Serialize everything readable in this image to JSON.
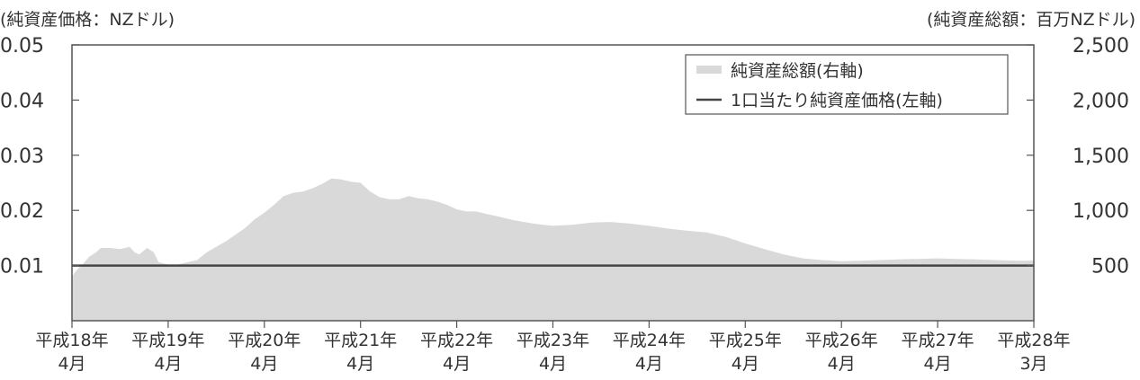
{
  "chart_data": {
    "type": "area",
    "left_axis_label": "(純資産価格：NZドル)",
    "right_axis_label": "(純資産総額：百万NZドル)",
    "left_ylim": [
      0,
      0.05
    ],
    "right_ylim": [
      0,
      2500
    ],
    "left_ticks": [
      "0.01",
      "0.02",
      "0.03",
      "0.04",
      "0.05"
    ],
    "left_tick_values": [
      0.01,
      0.02,
      0.03,
      0.04,
      0.05
    ],
    "right_ticks": [
      "500",
      "1,000",
      "1,500",
      "2,000",
      "2,500"
    ],
    "right_tick_values": [
      500,
      1000,
      1500,
      2000,
      2500
    ],
    "x_ticks": [
      {
        "top": "平成18年",
        "bottom": "4月"
      },
      {
        "top": "平成19年",
        "bottom": "4月"
      },
      {
        "top": "平成20年",
        "bottom": "4月"
      },
      {
        "top": "平成21年",
        "bottom": "4月"
      },
      {
        "top": "平成22年",
        "bottom": "4月"
      },
      {
        "top": "平成23年",
        "bottom": "4月"
      },
      {
        "top": "平成24年",
        "bottom": "4月"
      },
      {
        "top": "平成25年",
        "bottom": "4月"
      },
      {
        "top": "平成26年",
        "bottom": "4月"
      },
      {
        "top": "平成27年",
        "bottom": "4月"
      },
      {
        "top": "平成28年",
        "bottom": "3月"
      }
    ],
    "x_range": [
      0,
      10
    ],
    "legend": [
      {
        "label": "純資産総額(右軸)",
        "kind": "area",
        "color": "#d9d9d9"
      },
      {
        "label": "1口当たり純資産価格(左軸)",
        "kind": "line",
        "color": "#444444"
      }
    ],
    "legend_position": "top-right",
    "grid": false,
    "series": [
      {
        "name": "純資産総額(右軸)",
        "axis": "right",
        "type": "area",
        "color": "#d9d9d9",
        "x": [
          0,
          0.05,
          0.12,
          0.18,
          0.25,
          0.3,
          0.4,
          0.5,
          0.6,
          0.65,
          0.7,
          0.78,
          0.85,
          0.9,
          0.95,
          1.0,
          1.05,
          1.15,
          1.3,
          1.4,
          1.5,
          1.6,
          1.7,
          1.8,
          1.9,
          2.0,
          2.1,
          2.2,
          2.3,
          2.4,
          2.5,
          2.6,
          2.7,
          2.8,
          2.9,
          3.0,
          3.1,
          3.2,
          3.3,
          3.4,
          3.5,
          3.6,
          3.7,
          3.8,
          3.9,
          4.0,
          4.1,
          4.2,
          4.3,
          4.4,
          4.5,
          4.6,
          4.7,
          4.8,
          4.9,
          5.0,
          5.2,
          5.4,
          5.6,
          5.8,
          6.0,
          6.2,
          6.4,
          6.6,
          6.8,
          7.0,
          7.2,
          7.4,
          7.6,
          7.8,
          8.0,
          8.2,
          8.4,
          8.6,
          8.8,
          9.0,
          9.2,
          9.4,
          9.6,
          9.8,
          10.0
        ],
        "values": [
          400,
          460,
          520,
          580,
          620,
          660,
          660,
          650,
          670,
          620,
          600,
          660,
          620,
          530,
          520,
          510,
          500,
          520,
          550,
          620,
          670,
          720,
          780,
          840,
          920,
          980,
          1050,
          1130,
          1160,
          1170,
          1200,
          1240,
          1290,
          1280,
          1260,
          1250,
          1170,
          1120,
          1100,
          1100,
          1130,
          1110,
          1100,
          1080,
          1050,
          1010,
          990,
          990,
          970,
          950,
          930,
          910,
          895,
          880,
          870,
          860,
          870,
          890,
          895,
          880,
          860,
          835,
          815,
          800,
          760,
          700,
          650,
          600,
          565,
          550,
          540,
          545,
          550,
          555,
          560,
          565,
          560,
          555,
          550,
          545,
          545
        ]
      },
      {
        "name": "1口当たり純資産価格(左軸)",
        "axis": "left",
        "type": "line",
        "color": "#444444",
        "x": [
          0,
          10
        ],
        "values": [
          0.01,
          0.01
        ]
      }
    ]
  }
}
